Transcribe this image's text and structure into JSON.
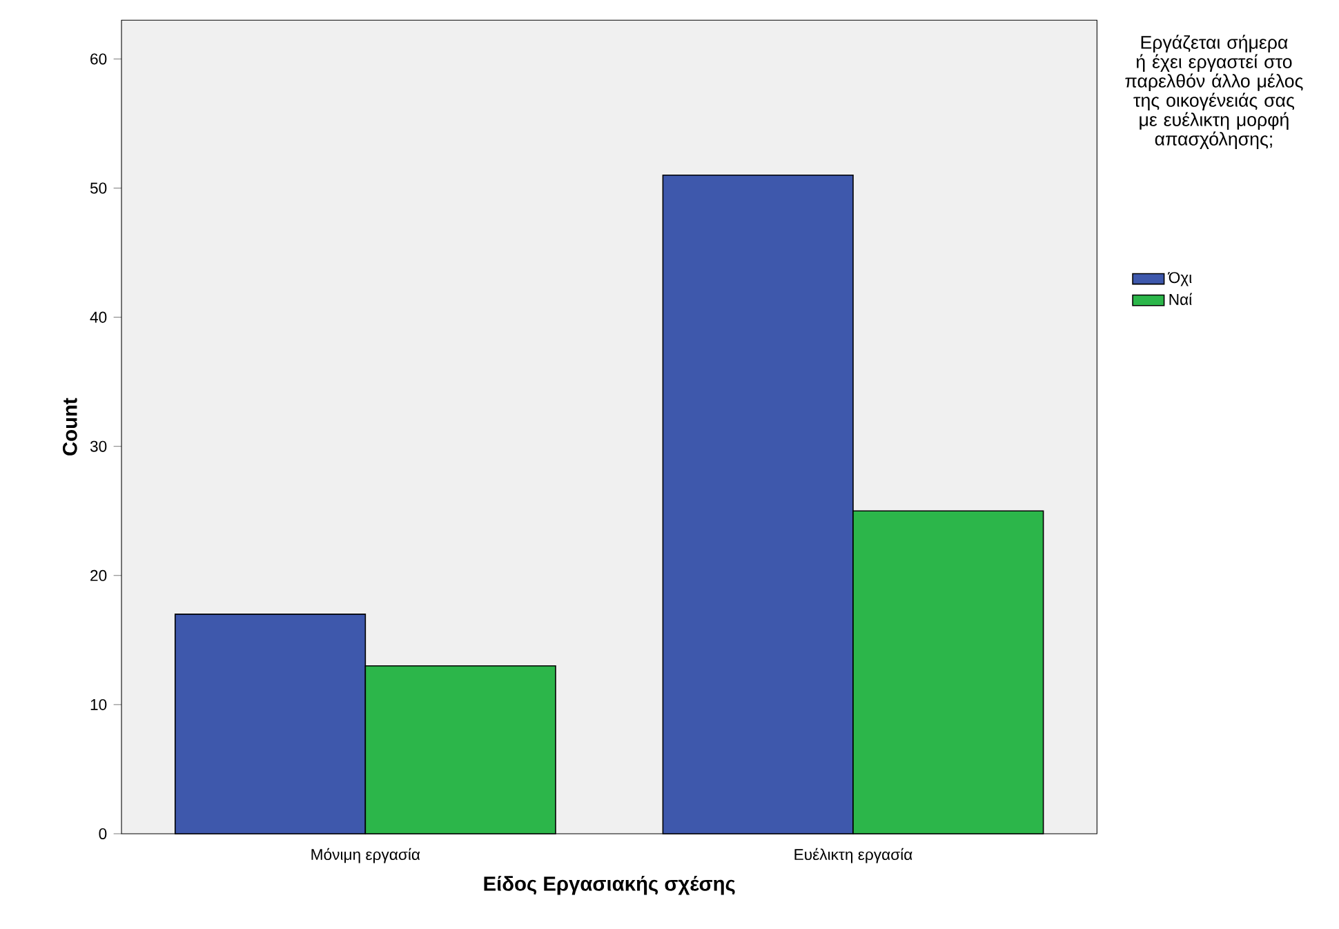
{
  "chart_data": {
    "type": "bar",
    "xlabel": "Είδος Εργασιακής σχέσης",
    "ylabel": "Count",
    "legend_title": "Εργάζεται σήμερα ή έχει εργαστεί στο παρελθόν άλλο μέλος της οικογένειάς σας με ευέλικτη μορφή απασχόλησης;",
    "categories": [
      "Μόνιμη εργασία",
      "Ευέλικτη εργασία"
    ],
    "series": [
      {
        "name": "Όχι",
        "color": "#3e58ac",
        "values": [
          17,
          51
        ]
      },
      {
        "name": "Ναί",
        "color": "#2cb64a",
        "values": [
          13,
          25
        ]
      }
    ],
    "ylim": [
      0,
      63
    ],
    "yticks": [
      0,
      10,
      20,
      30,
      40,
      50,
      60
    ],
    "grid": false,
    "legend": "right"
  }
}
